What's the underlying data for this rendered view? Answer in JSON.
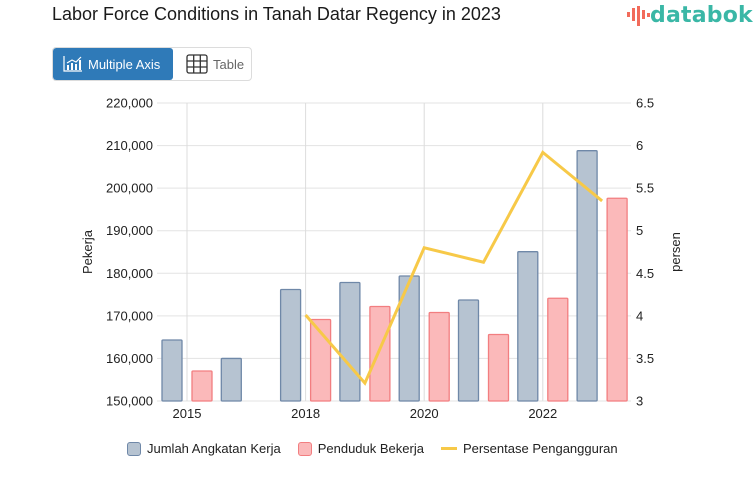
{
  "header": {
    "title": "Labor Force Conditions in Tanah Datar Regency in 2023",
    "logo_text": "databoks"
  },
  "toggle": {
    "active_label": "Multiple Axis",
    "active_icon": "chart-icon",
    "inactive_label": "Table",
    "inactive_icon": "table-icon"
  },
  "colors": {
    "accent": "#2f7ab8",
    "logo": "#3ab7a6",
    "blue_fill": "#b6c3d1",
    "blue_stroke": "#6f88a8",
    "pink_fill": "#fbb9ba",
    "pink_stroke": "#f27e80",
    "line": "#f7c948"
  },
  "chart_data": {
    "type": "bar",
    "title": "Labor Force Conditions in Tanah Datar Regency in 2023",
    "categories": [
      "2015",
      "2017",
      "2018",
      "2019",
      "2020",
      "2021",
      "2022",
      "2023"
    ],
    "x_tick_labels": [
      "2015",
      "",
      "2018",
      "",
      "2020",
      "",
      "2022",
      ""
    ],
    "series": [
      {
        "name": "Jumlah Angkatan Kerja",
        "type": "bar",
        "axis": "left",
        "values": [
          164330,
          160000,
          176190,
          177840,
          179360,
          173730,
          185070,
          208800
        ]
      },
      {
        "name": "Penduduk Bekerja",
        "type": "bar",
        "axis": "left",
        "values": [
          157050,
          null,
          169150,
          172200,
          170790,
          165620,
          174130,
          197620
        ]
      },
      {
        "name": "Persentase Pengangguran",
        "type": "line",
        "axis": "right",
        "values": [
          null,
          null,
          4.01,
          3.21,
          4.8,
          4.63,
          5.92,
          5.35
        ]
      }
    ],
    "y_left": {
      "label": "Pekerja",
      "range": [
        150000,
        220000
      ],
      "ticks": [
        "150,000",
        "160,000",
        "170,000",
        "180,000",
        "190,000",
        "200,000",
        "210,000",
        "220,000"
      ]
    },
    "y_right": {
      "label": "persen",
      "range": [
        3,
        6.5
      ],
      "ticks": [
        "3",
        "3.5",
        "4",
        "4.5",
        "5",
        "5.5",
        "6",
        "6.5"
      ]
    },
    "grid": true,
    "legend": "bottom"
  }
}
